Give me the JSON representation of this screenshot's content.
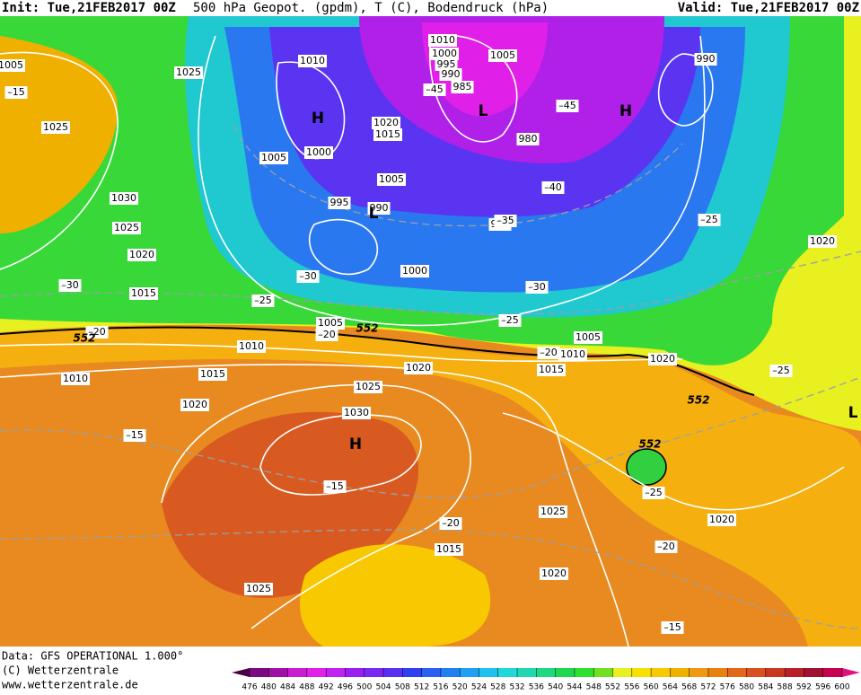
{
  "header": {
    "init": "Init: Tue,21FEB2017 00Z",
    "title": "500 hPa Geopot. (gpdm), T (C), Bodendruck (hPa)",
    "valid": "Valid: Tue,21FEB2017 00Z"
  },
  "footer": {
    "data": "Data: GFS OPERATIONAL 1.000°",
    "copyright": "(C) Wetterzentrale",
    "url": "www.wetterzentrale.de"
  },
  "legend": {
    "ticks": [
      476,
      480,
      484,
      488,
      492,
      496,
      500,
      504,
      508,
      512,
      516,
      520,
      524,
      528,
      532,
      536,
      540,
      544,
      548,
      552,
      556,
      560,
      564,
      568,
      572,
      576,
      580,
      584,
      588,
      592,
      596,
      600
    ],
    "colors": [
      "#4a0046",
      "#7a0a80",
      "#a010a8",
      "#c81ed0",
      "#e020e8",
      "#c020f0",
      "#9a1ef0",
      "#7a28f0",
      "#5a30f0",
      "#3040f0",
      "#2860f0",
      "#2080f0",
      "#20a0f0",
      "#20c0f0",
      "#20d8d8",
      "#20d8b0",
      "#20d880",
      "#20d850",
      "#30e030",
      "#70e020",
      "#e8f020",
      "#f8e000",
      "#f8c800",
      "#f0b000",
      "#f09810",
      "#e88010",
      "#e06818",
      "#d85020",
      "#c83820",
      "#b82028",
      "#a01030",
      "#c80050",
      "#e01080"
    ]
  },
  "map": {
    "pressure_labels": [
      "1010",
      "1000",
      "995",
      "990",
      "985",
      "1005",
      "990",
      "1010",
      "1025",
      "1025",
      "1020",
      "1015",
      "1000",
      "1005",
      "980",
      "1005",
      "995",
      "990",
      "1030",
      "1025",
      "1020",
      "990",
      "1000",
      "1015",
      "1020",
      "1005",
      "1010",
      "1005",
      "1010",
      "1020",
      "1015",
      "1020",
      "1010",
      "1015",
      "1025",
      "1020",
      "1030",
      "1025",
      "1020",
      "1015",
      "1020",
      "1025",
      "1005"
    ],
    "temperature_labels": [
      "–45",
      "–45",
      "–40",
      "–35",
      "–30",
      "–30",
      "–25",
      "–25",
      "–30",
      "–25",
      "–20",
      "–20",
      "–20",
      "–25",
      "–15",
      "–15",
      "–25",
      "–20",
      "–20",
      "–15",
      "–15"
    ],
    "height_labels": [
      "552",
      "552",
      "552",
      "552"
    ],
    "centers": [
      "H",
      "L",
      "H",
      "L",
      "H",
      "L"
    ]
  }
}
